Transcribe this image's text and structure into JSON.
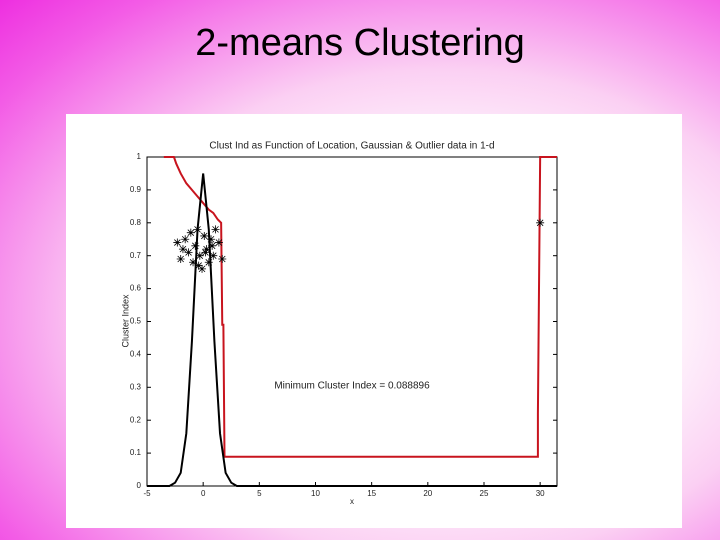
{
  "slide_title": "2-means Clustering",
  "chart_data": {
    "type": "line",
    "title": "Clust Ind as Function of Location, Gaussian & Outlier data in 1-d",
    "xlabel": "x",
    "ylabel": "Cluster Index",
    "annotation": "Minimum Cluster Index = 0.088896",
    "xlim": [
      -5,
      31.5
    ],
    "ylim": [
      0,
      1
    ],
    "xticks": [
      -5,
      0,
      5,
      10,
      15,
      20,
      25,
      30
    ],
    "yticks": [
      0,
      0.1,
      0.2,
      0.3,
      0.4,
      0.5,
      0.6,
      0.7,
      0.8,
      0.9,
      1
    ],
    "series": [
      {
        "style": "line",
        "color": "#c8141e",
        "x": [
          -3.5,
          -2.6,
          -2.4,
          -2.0,
          -1.5,
          -1.0,
          -0.5,
          0,
          0.5,
          0.9,
          1.3,
          1.6,
          1.7,
          1.8,
          1.9,
          29.8,
          29.8,
          30.0,
          31.5
        ],
        "values": [
          1,
          1,
          0.98,
          0.95,
          0.92,
          0.9,
          0.88,
          0.86,
          0.84,
          0.83,
          0.81,
          0.8,
          0.49,
          0.49,
          0.089,
          0.089,
          0.22,
          1,
          1
        ]
      },
      {
        "style": "line",
        "color": "#000000",
        "x": [
          -5,
          -3,
          -2.5,
          -2,
          -1.5,
          -1,
          -0.5,
          0,
          0.5,
          1,
          1.5,
          2,
          2.5,
          3,
          31.5
        ],
        "values": [
          0,
          0,
          0.01,
          0.04,
          0.16,
          0.44,
          0.78,
          0.95,
          0.78,
          0.44,
          0.16,
          0.04,
          0.01,
          0,
          0
        ]
      },
      {
        "style": "star",
        "color": "#000000",
        "x": [
          -2.3,
          -2.0,
          -1.6,
          -1.3,
          -1.1,
          -0.9,
          -0.7,
          -0.5,
          -0.3,
          -0.1,
          0.1,
          0.3,
          0.5,
          0.7,
          0.9,
          1.1,
          1.4,
          1.7,
          -1.8,
          -0.4,
          0.2,
          0.8,
          30.0
        ],
        "values": [
          0.74,
          0.69,
          0.75,
          0.71,
          0.77,
          0.68,
          0.73,
          0.78,
          0.7,
          0.66,
          0.76,
          0.72,
          0.68,
          0.75,
          0.7,
          0.78,
          0.74,
          0.69,
          0.72,
          0.67,
          0.71,
          0.73,
          0.8
        ]
      }
    ]
  }
}
